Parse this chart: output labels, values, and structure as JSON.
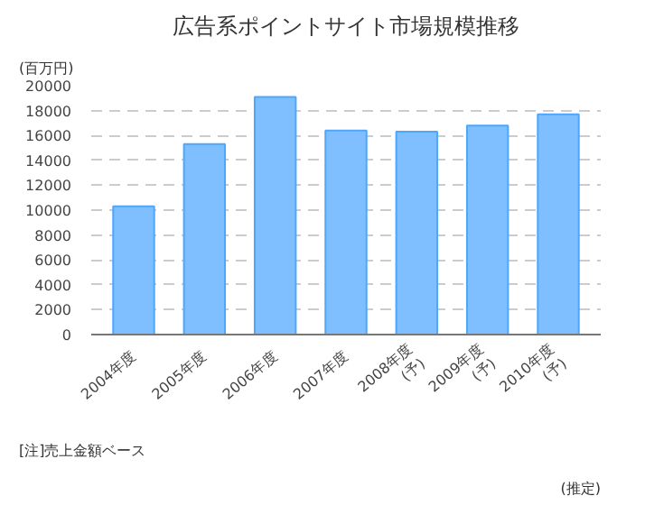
{
  "chart_data": {
    "type": "bar",
    "title": "広告系ポイントサイト市場規模推移",
    "ylabel": "(百万円)",
    "categories": [
      "2004年度",
      "2005年度",
      "2006年度",
      "2007年度",
      "2008年度\n(予)",
      "2009年度\n(予)",
      "2010年度\n(予)"
    ],
    "values": [
      10300,
      15300,
      19100,
      16400,
      16300,
      16800,
      17700
    ],
    "color": "#7fbfff",
    "ylim": [
      0,
      20000
    ],
    "yticks": [
      0,
      2000,
      4000,
      6000,
      8000,
      10000,
      12000,
      14000,
      16000,
      18000,
      20000
    ],
    "grid": "y",
    "annotations": [
      "[注]売上金額ベース",
      "(推定)"
    ]
  }
}
